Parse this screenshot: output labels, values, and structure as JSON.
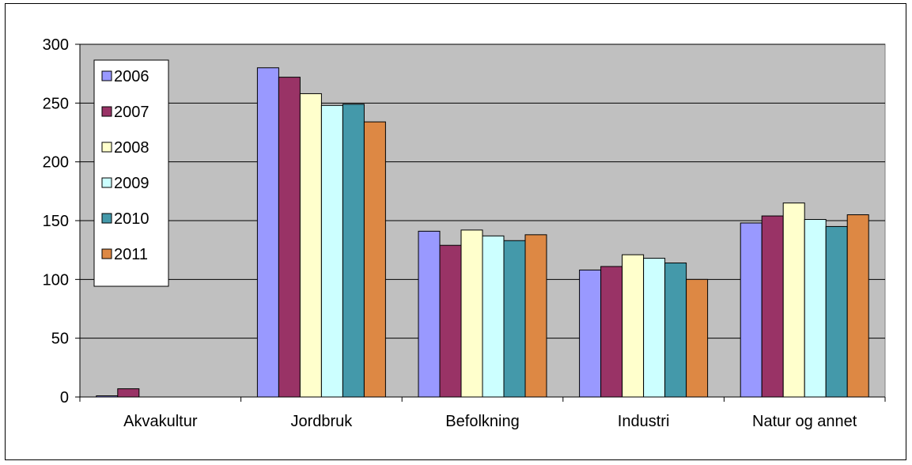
{
  "chart_data": {
    "type": "bar",
    "title": "",
    "xlabel": "",
    "ylabel": "",
    "ylim": [
      0,
      300
    ],
    "yticks": [
      0,
      50,
      100,
      150,
      200,
      250,
      300
    ],
    "grid": true,
    "legend_position": "top-left (inside plot)",
    "categories": [
      "Akvakultur",
      "Jordbruk",
      "Befolkning",
      "Industri",
      "Natur og annet"
    ],
    "series": [
      {
        "name": "2006",
        "color": "#9999ff",
        "values": [
          1,
          280,
          141,
          108,
          148
        ]
      },
      {
        "name": "2007",
        "color": "#993366",
        "values": [
          7,
          272,
          129,
          111,
          154
        ]
      },
      {
        "name": "2008",
        "color": "#ffffcc",
        "values": [
          0,
          258,
          142,
          121,
          165
        ]
      },
      {
        "name": "2009",
        "color": "#ccffff",
        "values": [
          0,
          248,
          137,
          118,
          151
        ]
      },
      {
        "name": "2010",
        "color": "#4499aa",
        "values": [
          0,
          249,
          133,
          114,
          145
        ]
      },
      {
        "name": "2011",
        "color": "#dd8844",
        "values": [
          0,
          234,
          138,
          100,
          155
        ]
      }
    ],
    "plot_background": "#c0c0c0"
  }
}
